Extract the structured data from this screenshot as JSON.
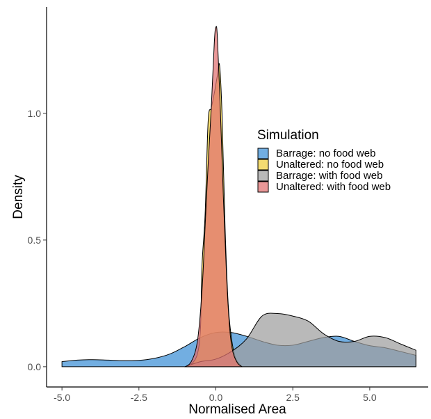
{
  "chart_data": {
    "type": "area",
    "title": "",
    "xlabel": "Normalised Area",
    "ylabel": "Density",
    "xlim": [
      -5.5,
      6.9
    ],
    "ylim": [
      -0.08,
      1.42
    ],
    "x_ticks": [
      -5.0,
      -2.5,
      0.0,
      2.5,
      5.0
    ],
    "x_tick_labels": [
      "-5.0",
      "-2.5",
      "0.0",
      "2.5",
      "5.0"
    ],
    "y_ticks": [
      0.0,
      0.5,
      1.0
    ],
    "y_tick_labels": [
      "0.0",
      "0.5",
      "1.0"
    ],
    "grid": false,
    "legend": {
      "title": "Simulation",
      "placement": "center-right"
    },
    "series": [
      {
        "name": "Barrage: no food web",
        "color": "#3b8fd6",
        "points": [
          [
            -5.0,
            0.02
          ],
          [
            -4.5,
            0.026
          ],
          [
            -4.0,
            0.028
          ],
          [
            -3.5,
            0.026
          ],
          [
            -3.0,
            0.024
          ],
          [
            -2.5,
            0.025
          ],
          [
            -2.0,
            0.033
          ],
          [
            -1.5,
            0.05
          ],
          [
            -1.0,
            0.08
          ],
          [
            -0.5,
            0.115
          ],
          [
            0.0,
            0.135
          ],
          [
            0.5,
            0.135
          ],
          [
            1.0,
            0.12
          ],
          [
            1.5,
            0.1
          ],
          [
            2.0,
            0.085
          ],
          [
            2.5,
            0.085
          ],
          [
            3.0,
            0.1
          ],
          [
            3.5,
            0.115
          ],
          [
            4.0,
            0.12
          ],
          [
            4.5,
            0.1
          ],
          [
            5.0,
            0.083
          ],
          [
            5.5,
            0.075
          ],
          [
            6.0,
            0.06
          ],
          [
            6.5,
            0.045
          ]
        ]
      },
      {
        "name": "Unaltered: no food web",
        "color": "#f0cf3a",
        "points": [
          [
            -1.0,
            0.0
          ],
          [
            -0.8,
            0.01
          ],
          [
            -0.6,
            0.05
          ],
          [
            -0.5,
            0.15
          ],
          [
            -0.45,
            0.4
          ],
          [
            -0.35,
            0.6
          ],
          [
            -0.25,
            0.97
          ],
          [
            -0.15,
            1.02
          ],
          [
            -0.05,
            1.08
          ],
          [
            0.05,
            1.15
          ],
          [
            0.12,
            1.19
          ],
          [
            0.2,
            1.0
          ],
          [
            0.3,
            0.55
          ],
          [
            0.4,
            0.25
          ],
          [
            0.5,
            0.12
          ],
          [
            0.6,
            0.05
          ],
          [
            0.7,
            0.02
          ],
          [
            0.85,
            0.0
          ]
        ]
      },
      {
        "name": "Barrage: with food web",
        "color": "#9e9e9e",
        "points": [
          [
            -1.0,
            0.0
          ],
          [
            -0.5,
            0.02
          ],
          [
            0.0,
            0.03
          ],
          [
            0.5,
            0.06
          ],
          [
            1.0,
            0.11
          ],
          [
            1.5,
            0.2
          ],
          [
            2.0,
            0.21
          ],
          [
            2.5,
            0.2
          ],
          [
            3.0,
            0.18
          ],
          [
            3.5,
            0.13
          ],
          [
            4.0,
            0.1
          ],
          [
            4.5,
            0.1
          ],
          [
            5.0,
            0.12
          ],
          [
            5.5,
            0.115
          ],
          [
            6.0,
            0.09
          ],
          [
            6.5,
            0.065
          ]
        ]
      },
      {
        "name": "Unaltered: with food web",
        "color": "#e07070",
        "points": [
          [
            -1.0,
            0.0
          ],
          [
            -0.8,
            0.02
          ],
          [
            -0.6,
            0.1
          ],
          [
            -0.45,
            0.3
          ],
          [
            -0.35,
            0.55
          ],
          [
            -0.25,
            0.8
          ],
          [
            -0.15,
            1.02
          ],
          [
            -0.05,
            1.28
          ],
          [
            0.0,
            1.34
          ],
          [
            0.05,
            1.3
          ],
          [
            0.15,
            1.0
          ],
          [
            0.25,
            0.65
          ],
          [
            0.35,
            0.35
          ],
          [
            0.45,
            0.15
          ],
          [
            0.55,
            0.06
          ],
          [
            0.7,
            0.015
          ],
          [
            0.85,
            0.0
          ]
        ]
      }
    ]
  }
}
